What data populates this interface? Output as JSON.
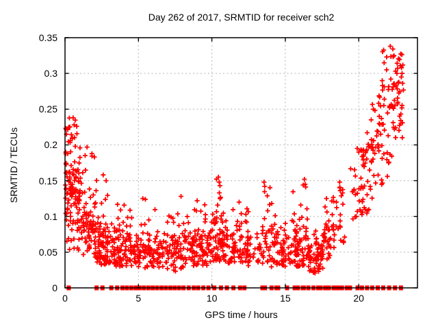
{
  "chart_data": {
    "type": "scatter",
    "title": "Day 262 of 2017, SRMTID for receiver sch2",
    "xlabel": "GPS time / hours",
    "ylabel": "SRMTID / TECUs",
    "xlim": [
      0,
      24
    ],
    "ylim": [
      0,
      0.35
    ],
    "x_ticks": [
      0,
      5,
      10,
      15,
      20
    ],
    "x_tick_labels": [
      "0",
      "5",
      "10",
      "15",
      "20"
    ],
    "y_ticks": [
      0,
      0.05,
      0.1,
      0.15,
      0.2,
      0.25,
      0.3,
      0.35
    ],
    "y_tick_labels": [
      "0",
      "0.05",
      "0.1",
      "0.15",
      "0.2",
      "0.25",
      "0.3",
      "0.35"
    ],
    "grid": true,
    "legend": "none",
    "marker": "plus",
    "marker_color": "#ff0000",
    "grid_color": "#b4b4b4",
    "axis_color": "#000000",
    "background_color": "#ffffff",
    "highlight_points": [
      [
        0.07,
        0.222
      ],
      [
        0.1,
        0.215
      ],
      [
        0.05,
        0.19
      ],
      [
        0.55,
        0.238
      ],
      [
        0.62,
        0.228
      ],
      [
        0.5,
        0.21
      ],
      [
        0.7,
        0.198
      ],
      [
        1.5,
        0.197
      ],
      [
        2.6,
        0.158
      ],
      [
        2.8,
        0.15
      ],
      [
        5.3,
        0.125
      ],
      [
        7.9,
        0.128
      ],
      [
        9.0,
        0.122
      ],
      [
        10.45,
        0.155
      ],
      [
        10.5,
        0.148
      ],
      [
        10.55,
        0.143
      ],
      [
        13.55,
        0.148
      ],
      [
        13.6,
        0.142
      ],
      [
        16.3,
        0.152
      ],
      [
        16.35,
        0.145
      ],
      [
        17.8,
        0.125
      ],
      [
        18.7,
        0.148
      ],
      [
        18.72,
        0.14
      ],
      [
        19.9,
        0.195
      ],
      [
        20.0,
        0.19
      ],
      [
        21.0,
        0.25
      ],
      [
        21.6,
        0.29
      ],
      [
        21.9,
        0.305
      ],
      [
        22.15,
        0.338
      ],
      [
        22.4,
        0.325
      ],
      [
        22.6,
        0.3
      ],
      [
        22.9,
        0.295
      ],
      [
        22.95,
        0.3
      ]
    ],
    "point_clusters": [
      {
        "n": 30,
        "x": [
          0.02,
          0.28
        ],
        "y_base": [
          0.13,
          0.13
        ],
        "spread": 0.1,
        "y_range": [
          0.05,
          0.228
        ]
      },
      {
        "n": 90,
        "x": [
          0.28,
          1.05
        ],
        "y_base": [
          0.13,
          0.115
        ],
        "spread": 0.095,
        "y_range": [
          0.05,
          0.248
        ]
      },
      {
        "n": 80,
        "x": [
          1.05,
          2.1
        ],
        "y_base": [
          0.095,
          0.075
        ],
        "spread": 0.065,
        "y_range": [
          0.042,
          0.2
        ]
      },
      {
        "n": 85,
        "x": [
          2.1,
          3.2
        ],
        "y_base": [
          0.06,
          0.055
        ],
        "spread": 0.05,
        "y_range": [
          0.032,
          0.16
        ]
      },
      {
        "n": 95,
        "x": [
          3.2,
          4.6
        ],
        "y_base": [
          0.055,
          0.05
        ],
        "spread": 0.04,
        "y_range": [
          0.03,
          0.125
        ]
      },
      {
        "n": 95,
        "x": [
          4.6,
          6.6
        ],
        "y_base": [
          0.05,
          0.05
        ],
        "spread": 0.038,
        "y_range": [
          0.028,
          0.13
        ]
      },
      {
        "n": 95,
        "x": [
          6.6,
          8.6
        ],
        "y_base": [
          0.05,
          0.048
        ],
        "spread": 0.036,
        "y_range": [
          0.022,
          0.105
        ]
      },
      {
        "n": 90,
        "x": [
          8.6,
          10.1
        ],
        "y_base": [
          0.055,
          0.06
        ],
        "spread": 0.04,
        "y_range": [
          0.03,
          0.125
        ]
      },
      {
        "n": 70,
        "x": [
          10.1,
          11.1
        ],
        "y_base": [
          0.062,
          0.06
        ],
        "spread": 0.05,
        "y_range": [
          0.035,
          0.158
        ]
      },
      {
        "n": 75,
        "x": [
          11.1,
          12.5
        ],
        "y_base": [
          0.055,
          0.055
        ],
        "spread": 0.042,
        "y_range": [
          0.03,
          0.122
        ]
      },
      {
        "n": 20,
        "x": [
          12.5,
          13.4
        ],
        "y_base": [
          0.055,
          0.055
        ],
        "spread": 0.03,
        "y_range": [
          0.035,
          0.092
        ]
      },
      {
        "n": 55,
        "x": [
          13.4,
          14.6
        ],
        "y_base": [
          0.058,
          0.055
        ],
        "spread": 0.05,
        "y_range": [
          0.028,
          0.15
        ]
      },
      {
        "n": 40,
        "x": [
          14.6,
          15.5
        ],
        "y_base": [
          0.05,
          0.05
        ],
        "spread": 0.032,
        "y_range": [
          0.03,
          0.095
        ]
      },
      {
        "n": 75,
        "x": [
          15.5,
          16.6
        ],
        "y_base": [
          0.055,
          0.05
        ],
        "spread": 0.05,
        "y_range": [
          0.03,
          0.152
        ]
      },
      {
        "n": 65,
        "x": [
          16.6,
          17.6
        ],
        "y_base": [
          0.045,
          0.045
        ],
        "spread": 0.035,
        "y_range": [
          0.02,
          0.09
        ]
      },
      {
        "n": 40,
        "x": [
          17.6,
          18.35
        ],
        "y_base": [
          0.06,
          0.068
        ],
        "spread": 0.045,
        "y_range": [
          0.035,
          0.128
        ]
      },
      {
        "n": 18,
        "x": [
          18.45,
          19.05
        ],
        "y_base": [
          0.095,
          0.095
        ],
        "spread": 0.06,
        "y_range": [
          0.055,
          0.152
        ]
      },
      {
        "n": 32,
        "x": [
          19.45,
          20.35
        ],
        "y_base": [
          0.125,
          0.145
        ],
        "spread": 0.07,
        "y_range": [
          0.08,
          0.205
        ]
      },
      {
        "n": 48,
        "x": [
          20.35,
          21.35
        ],
        "y_base": [
          0.165,
          0.195
        ],
        "spread": 0.085,
        "y_range": [
          0.1,
          0.265
        ]
      },
      {
        "n": 52,
        "x": [
          21.35,
          22.35
        ],
        "y_base": [
          0.215,
          0.255
        ],
        "spread": 0.09,
        "y_range": [
          0.13,
          0.338
        ]
      },
      {
        "n": 40,
        "x": [
          22.35,
          23.05
        ],
        "y_base": [
          0.245,
          0.265
        ],
        "spread": 0.09,
        "y_range": [
          0.15,
          0.335
        ]
      }
    ],
    "zero_value_segments": [
      [
        0.18,
        0.32
      ],
      [
        2.08,
        2.22
      ],
      [
        2.48,
        2.62
      ],
      [
        3.08,
        3.22
      ],
      [
        3.48,
        3.62
      ],
      [
        3.84,
        3.98
      ],
      [
        4.14,
        4.28
      ],
      [
        4.44,
        4.58
      ],
      [
        4.74,
        4.88
      ],
      [
        5.0,
        5.14
      ],
      [
        5.3,
        5.44
      ],
      [
        5.6,
        5.74
      ],
      [
        5.9,
        6.04
      ],
      [
        6.2,
        6.34
      ],
      [
        6.5,
        6.64
      ],
      [
        6.8,
        6.94
      ],
      [
        7.1,
        7.24
      ],
      [
        7.4,
        7.54
      ],
      [
        7.7,
        7.84
      ],
      [
        8.0,
        8.14
      ],
      [
        8.35,
        8.49
      ],
      [
        8.7,
        8.84
      ],
      [
        9.0,
        9.14
      ],
      [
        9.35,
        9.49
      ],
      [
        9.7,
        9.84
      ],
      [
        10.1,
        10.24
      ],
      [
        10.55,
        10.69
      ],
      [
        10.95,
        11.09
      ],
      [
        11.4,
        11.54
      ],
      [
        11.85,
        11.99
      ],
      [
        12.15,
        12.29
      ],
      [
        13.3,
        13.75
      ],
      [
        13.95,
        14.18
      ],
      [
        14.25,
        14.65
      ],
      [
        15.05,
        15.19
      ],
      [
        15.5,
        16.0
      ],
      [
        16.05,
        16.4
      ],
      [
        16.5,
        16.64
      ],
      [
        16.85,
        16.99
      ],
      [
        17.1,
        17.55
      ],
      [
        17.65,
        17.79
      ],
      [
        17.9,
        18.04
      ],
      [
        18.15,
        19.0
      ],
      [
        19.05,
        19.55
      ],
      [
        19.85,
        19.99
      ],
      [
        20.15,
        20.29
      ],
      [
        20.5,
        20.64
      ],
      [
        20.85,
        20.99
      ],
      [
        21.15,
        21.45
      ],
      [
        21.6,
        21.74
      ],
      [
        22.0,
        22.14
      ],
      [
        22.4,
        22.54
      ],
      [
        22.75,
        23.0
      ]
    ]
  }
}
